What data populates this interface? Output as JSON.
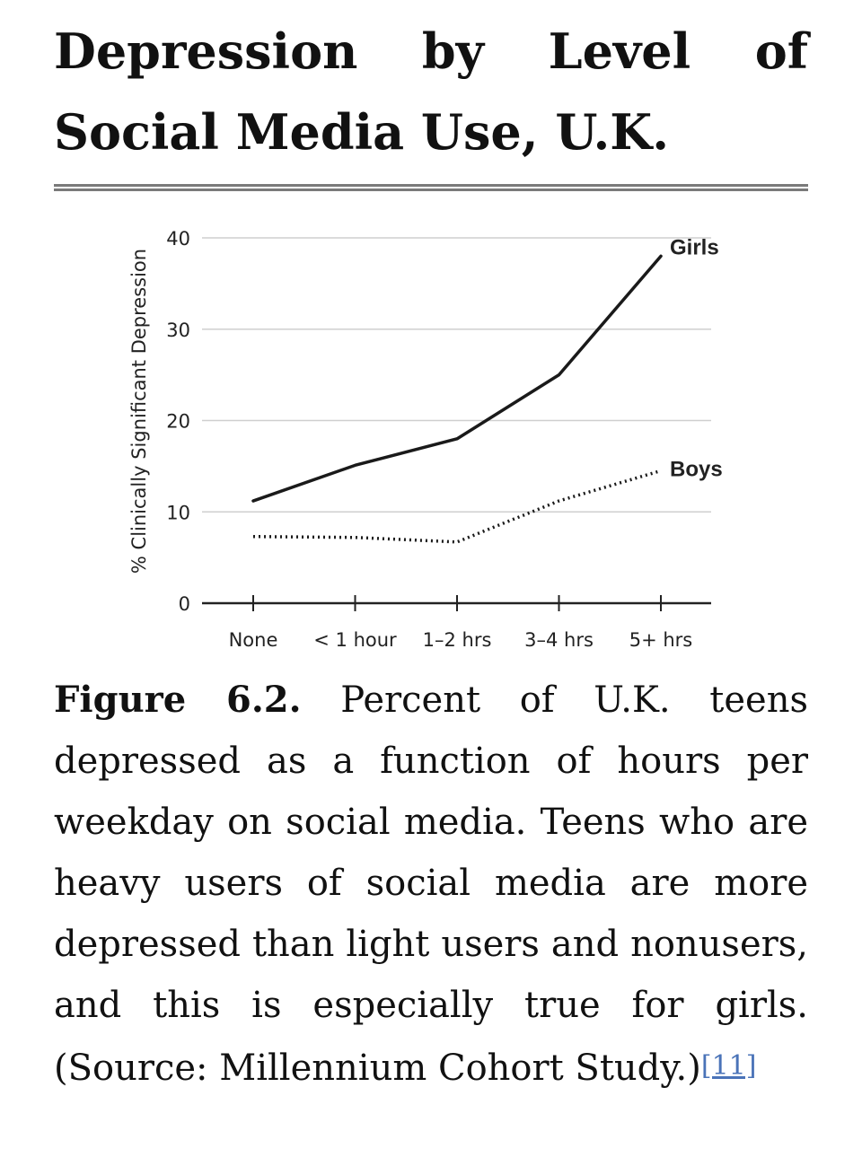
{
  "header": {
    "title": "Depression by Level of Social Media Use, U.K."
  },
  "chart_data": {
    "type": "line",
    "title": "Depression by Level of Social Media Use, U.K.",
    "xlabel": "",
    "ylabel": "% Clinically Significant Depression",
    "categories": [
      "None",
      "< 1 hour",
      "1–2 hrs",
      "3–4 hrs",
      "5+ hrs"
    ],
    "y_ticks": [
      0,
      10,
      20,
      30,
      40
    ],
    "ylim": [
      0,
      40
    ],
    "grid": true,
    "series": [
      {
        "name": "Girls",
        "values": [
          11.2,
          15.1,
          18.0,
          25.0,
          38.0
        ],
        "style": "solid",
        "color": "#1a1a1a"
      },
      {
        "name": "Boys",
        "values": [
          7.3,
          7.2,
          6.7,
          11.2,
          14.5
        ],
        "style": "dotted",
        "color": "#1a1a1a"
      }
    ]
  },
  "caption": {
    "label": "Figure 6.2.",
    "text": "Percent of U.K. teens depressed as a function of hours per weekday on social media. Teens who are heavy users of social media are more depressed than light users and nonusers, and this is especially true for girls. (Source: Millennium Cohort Study.)",
    "ref": "[11]"
  },
  "colors": {
    "grid": "#cfcfcf",
    "axis": "#222222",
    "text": "#111111",
    "link": "#4a73b8",
    "rule": "#7a7a7a"
  }
}
